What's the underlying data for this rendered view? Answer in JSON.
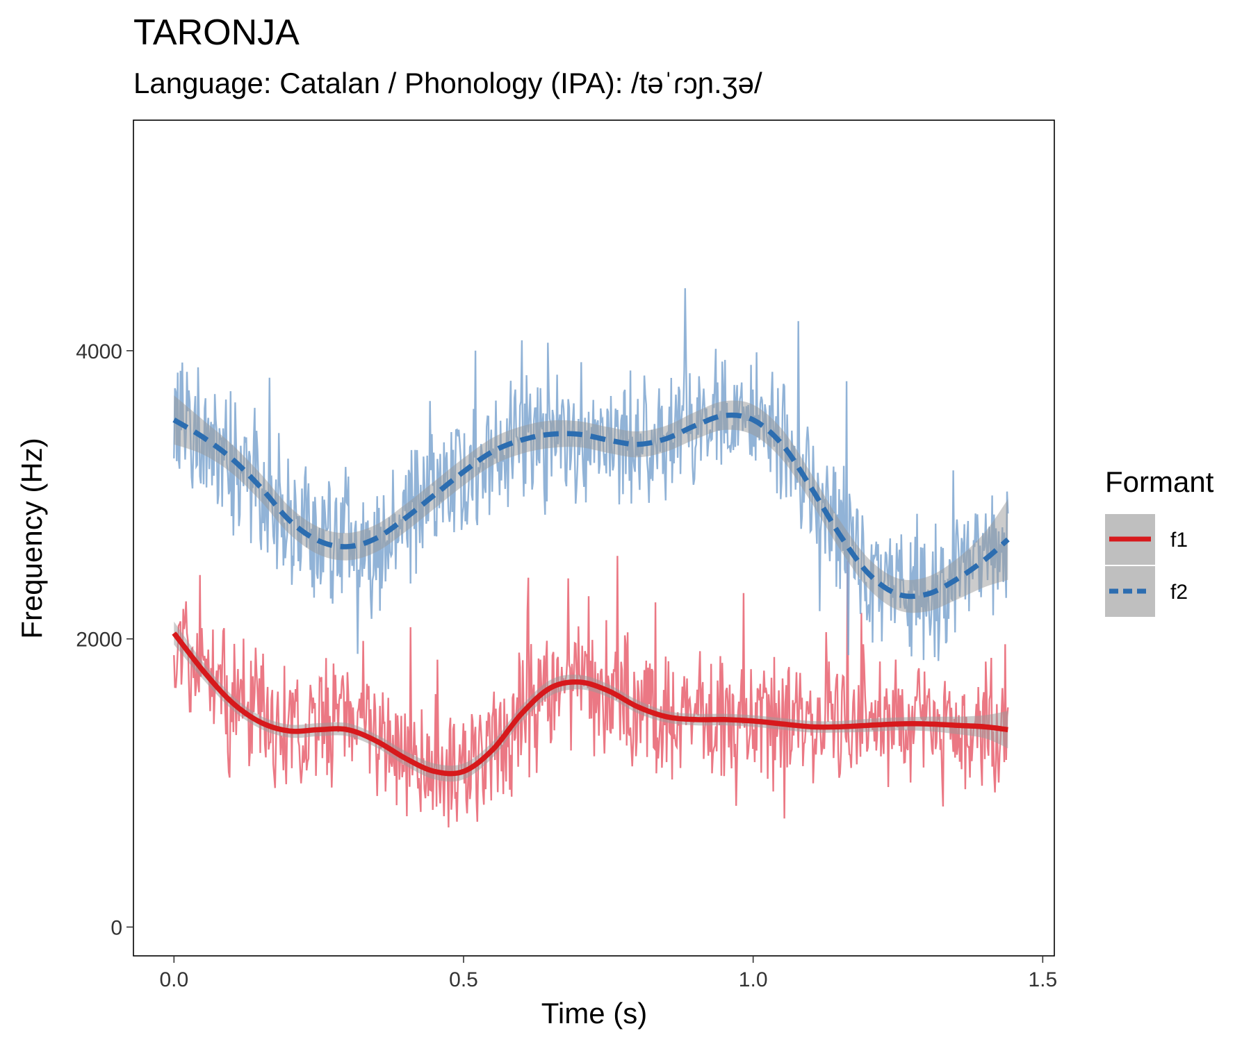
{
  "chart_data": {
    "type": "line",
    "title": "TARONJA",
    "subtitle": "Language: Catalan / Phonology (IPA): /təˈɾɔɲ.ʒə/",
    "xlabel": "Time (s)",
    "ylabel": "Frequency (Hz)",
    "xlim": [
      -0.07,
      1.52
    ],
    "ylim": [
      -200,
      5600
    ],
    "xticks": [
      0.0,
      0.5,
      1.0,
      1.5
    ],
    "xtick_labels": [
      "0.0",
      "0.5",
      "1.0",
      "1.5"
    ],
    "yticks": [
      0,
      2000,
      4000
    ],
    "ytick_labels": [
      "0",
      "2000",
      "4000"
    ],
    "grid": false,
    "legend": {
      "title": "Formant",
      "position": "right"
    },
    "series": [
      {
        "name": "f1",
        "color": "#d7191c",
        "raw_color": "#e8606e",
        "line_style": "solid",
        "smooth": {
          "x": [
            0.0,
            0.05,
            0.1,
            0.15,
            0.2,
            0.25,
            0.3,
            0.35,
            0.4,
            0.45,
            0.5,
            0.55,
            0.6,
            0.65,
            0.7,
            0.75,
            0.8,
            0.85,
            0.9,
            0.95,
            1.0,
            1.05,
            1.1,
            1.15,
            1.2,
            1.25,
            1.3,
            1.35,
            1.4,
            1.44
          ],
          "y": [
            2040,
            1780,
            1560,
            1420,
            1360,
            1370,
            1370,
            1290,
            1170,
            1080,
            1080,
            1230,
            1480,
            1660,
            1700,
            1640,
            1530,
            1460,
            1440,
            1440,
            1430,
            1410,
            1390,
            1390,
            1400,
            1410,
            1410,
            1400,
            1390,
            1370
          ],
          "band": [
            80,
            60,
            50,
            45,
            45,
            45,
            45,
            45,
            50,
            55,
            55,
            55,
            55,
            55,
            50,
            45,
            45,
            40,
            40,
            40,
            40,
            40,
            40,
            40,
            45,
            45,
            50,
            60,
            80,
            130
          ]
        }
      },
      {
        "name": "f2",
        "color": "#2c6db0",
        "raw_color": "#7ea6d0",
        "line_style": "dashed",
        "smooth": {
          "x": [
            0.0,
            0.05,
            0.1,
            0.15,
            0.2,
            0.25,
            0.3,
            0.35,
            0.4,
            0.45,
            0.5,
            0.55,
            0.6,
            0.65,
            0.7,
            0.75,
            0.8,
            0.85,
            0.9,
            0.95,
            1.0,
            1.05,
            1.1,
            1.15,
            1.2,
            1.25,
            1.3,
            1.35,
            1.4,
            1.44
          ],
          "y": [
            3520,
            3400,
            3250,
            3050,
            2820,
            2680,
            2640,
            2700,
            2840,
            3000,
            3160,
            3300,
            3380,
            3420,
            3420,
            3380,
            3350,
            3390,
            3480,
            3550,
            3520,
            3350,
            3050,
            2720,
            2450,
            2310,
            2310,
            2410,
            2550,
            2690
          ],
          "band": [
            170,
            120,
            100,
            95,
            95,
            95,
            95,
            95,
            95,
            95,
            95,
            95,
            95,
            95,
            90,
            90,
            90,
            90,
            95,
            100,
            105,
            105,
            100,
            100,
            105,
            110,
            120,
            140,
            190,
            280
          ]
        }
      }
    ]
  }
}
